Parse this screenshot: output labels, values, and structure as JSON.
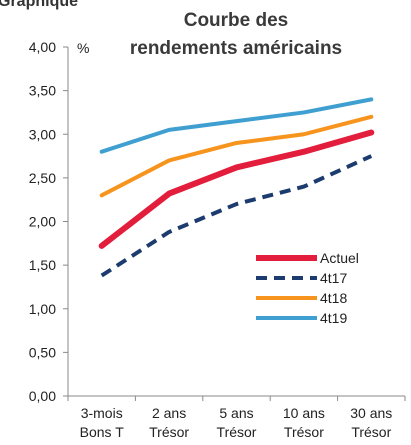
{
  "header_fragment": "Graphique",
  "chart_data": {
    "type": "line",
    "title": [
      "Courbe des",
      "rendements américains"
    ],
    "ylabel": "%",
    "ylim": [
      0,
      4
    ],
    "yticks": [
      "0,00",
      "0,50",
      "1,00",
      "1,50",
      "2,00",
      "2,50",
      "3,00",
      "3,50",
      "4,00"
    ],
    "categories": [
      [
        "3-mois",
        "Bons T"
      ],
      [
        "2 ans",
        "Trésor"
      ],
      [
        "5 ans",
        "Trésor"
      ],
      [
        "10 ans",
        "Trésor"
      ],
      [
        "30 ans",
        "Trésor"
      ]
    ],
    "series": [
      {
        "name": "Actuel",
        "values": [
          1.72,
          2.32,
          2.62,
          2.8,
          3.02
        ],
        "color": "#e31e3c",
        "dash": false,
        "width": 6
      },
      {
        "name": "4t17",
        "values": [
          1.38,
          1.88,
          2.2,
          2.4,
          2.75
        ],
        "color": "#1c3b6e",
        "dash": true,
        "width": 4
      },
      {
        "name": "4t18",
        "values": [
          2.3,
          2.7,
          2.9,
          3.0,
          3.2
        ],
        "color": "#f7941d",
        "dash": false,
        "width": 4
      },
      {
        "name": "4t19",
        "values": [
          2.8,
          3.05,
          3.15,
          3.25,
          3.4
        ],
        "color": "#3f9fd0",
        "dash": false,
        "width": 4
      }
    ],
    "grid": false,
    "legend_position": "bottom-right"
  }
}
